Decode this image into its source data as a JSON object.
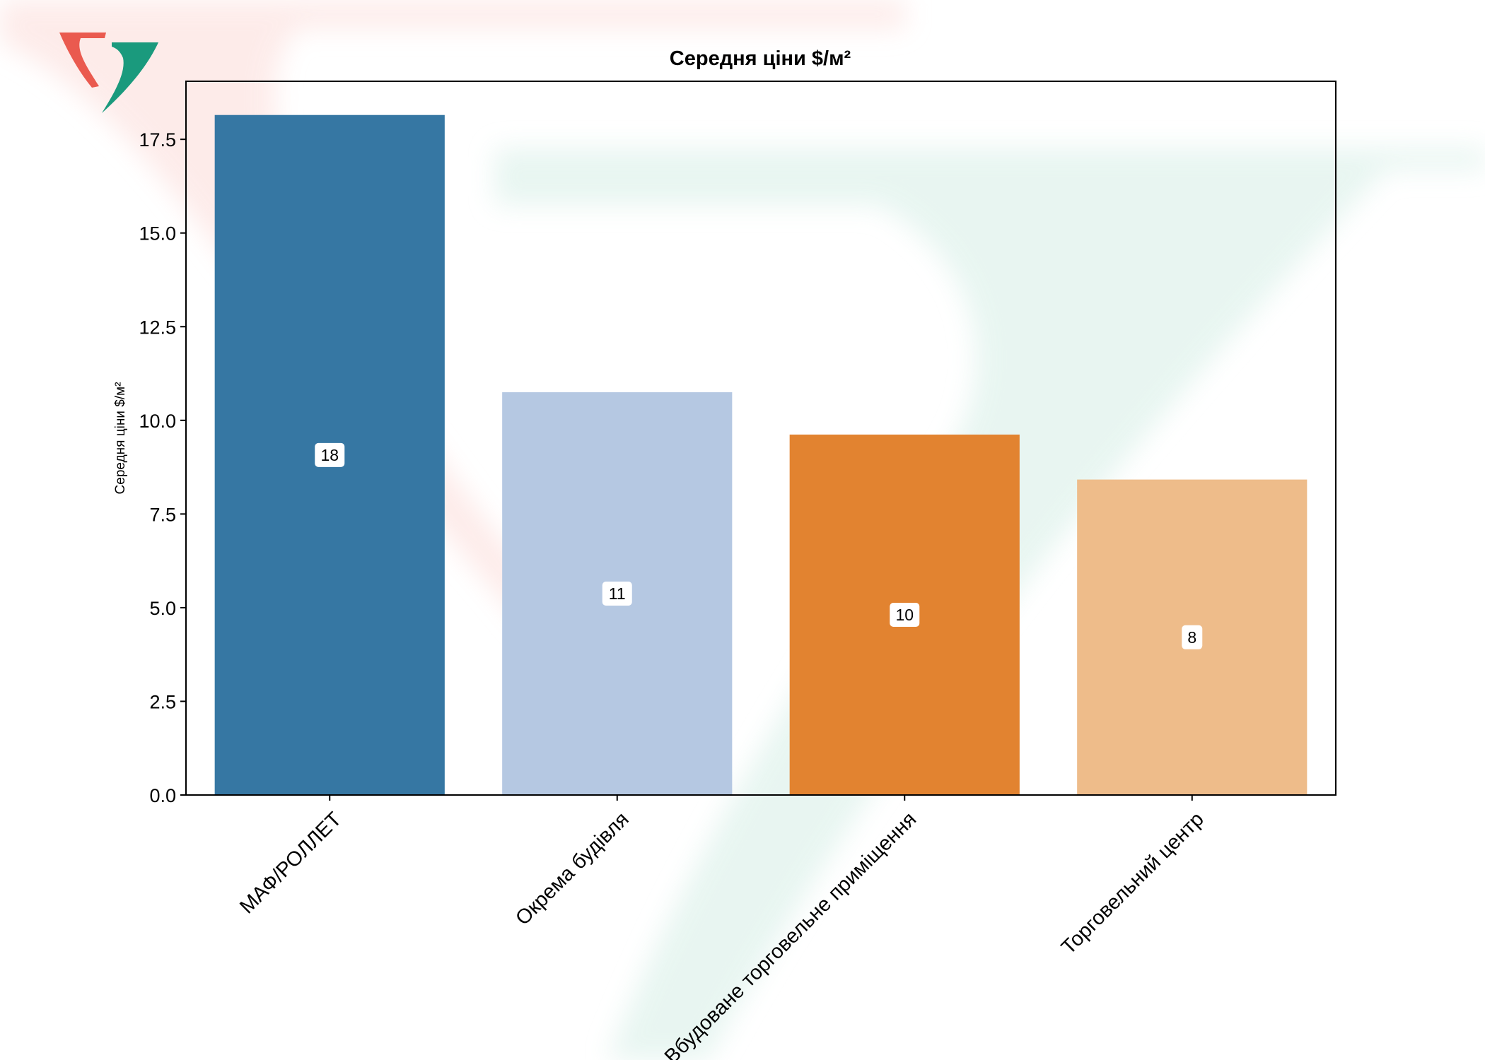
{
  "chart_data": {
    "type": "bar",
    "title": "Середня ціни $/м²",
    "xlabel": "",
    "ylabel": "Середня ціни $/м²",
    "categories": [
      "МАФ/РОЛЛЕТ",
      "Окрема будівля",
      "Вбудоване торговельне приміщення",
      "Торговельний центр"
    ],
    "values": [
      18.15,
      10.75,
      9.62,
      8.42
    ],
    "value_labels": [
      "18",
      "11",
      "10",
      "8"
    ],
    "bar_colors": [
      "#3274a1",
      "#b4c7e1",
      "#e1812c",
      "#eebb88"
    ],
    "ylim": [
      0,
      19.05
    ],
    "yticks": [
      0.0,
      2.5,
      5.0,
      7.5,
      10.0,
      12.5,
      15.0,
      17.5
    ],
    "ytick_labels": [
      "0.0",
      "2.5",
      "5.0",
      "7.5",
      "10.0",
      "12.5",
      "15.0",
      "17.5"
    ],
    "grid": false,
    "legend": "none"
  },
  "colors": {
    "logo_red": "#ea5a4f",
    "logo_green": "#1a9a7d",
    "watermark_red": "#fde8e6",
    "watermark_green": "#e4f4ef"
  },
  "icons": {
    "logo": "company-logo-icon"
  }
}
